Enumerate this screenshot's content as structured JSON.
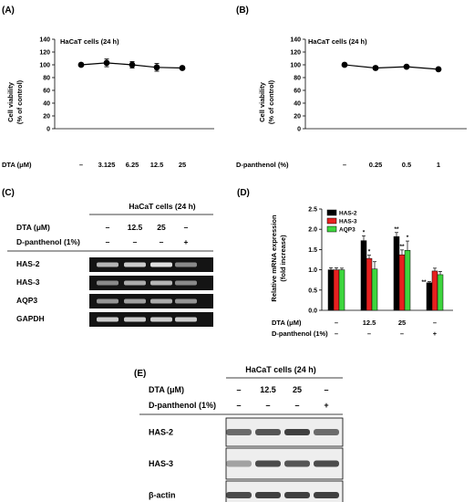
{
  "panels": {
    "A": {
      "label": "(A)",
      "chart_title": "HaCaT cells (24 h)",
      "ylabel_line1": "Cell viability",
      "ylabel_line2": "(% of control)",
      "row_label": "DTA (μM)",
      "categories": [
        "–",
        "3.125",
        "6.25",
        "12.5",
        "25"
      ]
    },
    "B": {
      "label": "(B)",
      "chart_title": "HaCaT cells (24 h)",
      "ylabel_line1": "Cell viability",
      "ylabel_line2": "(% of control)",
      "row_label": "D-panthenol (%)",
      "categories": [
        "–",
        "0.25",
        "0.5",
        "1"
      ]
    },
    "C": {
      "label": "(C)",
      "header": "HaCaT cells (24 h)",
      "row1_label": "DTA (μM)",
      "row1_values": [
        "–",
        "12.5",
        "25",
        "–"
      ],
      "row2_label": "D-panthenol (1%)",
      "row2_values": [
        "–",
        "–",
        "–",
        "+"
      ],
      "bands": [
        "HAS-2",
        "HAS-3",
        "AQP3",
        "GAPDH"
      ]
    },
    "D": {
      "label": "(D)",
      "ylabel_line1": "Relative mRNA expression",
      "ylabel_line2": "(fold increase)",
      "row1_label": "DTA (μM)",
      "row1_values": [
        "–",
        "12.5",
        "25",
        "–"
      ],
      "row2_label": "D-panthenol (1%)",
      "row2_values": [
        "–",
        "–",
        "–",
        "+"
      ],
      "legend": [
        "HAS-2",
        "HAS-3",
        "AQP3"
      ]
    },
    "E": {
      "label": "(E)",
      "header": "HaCaT cells (24 h)",
      "row1_label": "DTA (μM)",
      "row1_values": [
        "–",
        "12.5",
        "25",
        "–"
      ],
      "row2_label": "D-panthenol (1%)",
      "row2_values": [
        "–",
        "–",
        "–",
        "+"
      ],
      "bands": [
        "HAS-2",
        "HAS-3",
        "β-actin"
      ]
    }
  },
  "chart_data": [
    {
      "type": "line",
      "title": "HaCaT cells (24 h)",
      "xlabel": "DTA (μM)",
      "ylabel": "Cell viability (% of control)",
      "categories": [
        "–",
        "3.125",
        "6.25",
        "12.5",
        "25"
      ],
      "values": [
        100,
        103,
        100,
        96,
        95
      ],
      "errors": [
        2,
        6,
        5,
        6,
        2
      ],
      "ylim": [
        0,
        140
      ],
      "yticks": [
        0,
        20,
        40,
        60,
        80,
        100,
        120,
        140
      ]
    },
    {
      "type": "line",
      "title": "HaCaT cells (24 h)",
      "xlabel": "D-panthenol (%)",
      "ylabel": "Cell viability (% of control)",
      "categories": [
        "–",
        "0.25",
        "0.5",
        "1"
      ],
      "values": [
        100,
        95,
        97,
        93
      ],
      "errors": [
        1,
        3,
        2,
        1
      ],
      "ylim": [
        0,
        140
      ],
      "yticks": [
        0,
        20,
        40,
        60,
        80,
        100,
        120,
        140
      ]
    },
    {
      "type": "bar",
      "ylabel": "Relative mRNA expression (fold increase)",
      "ylim": [
        0,
        2.5
      ],
      "yticks": [
        0.0,
        0.5,
        1.0,
        1.5,
        2.0,
        2.5
      ],
      "series": [
        {
          "name": "HAS-2",
          "color": "#000000",
          "values": [
            1.0,
            1.72,
            1.82,
            0.68
          ],
          "errors": [
            0.05,
            0.12,
            0.1,
            0.03
          ],
          "marks": [
            "",
            "*",
            "**",
            "**"
          ]
        },
        {
          "name": "HAS-3",
          "color": "#e8201f",
          "values": [
            1.0,
            1.28,
            1.37,
            0.97
          ],
          "errors": [
            0.05,
            0.08,
            0.12,
            0.07
          ],
          "marks": [
            "",
            "*",
            "**",
            ""
          ]
        },
        {
          "name": "AQP3",
          "color": "#3ed63e",
          "values": [
            1.0,
            1.02,
            1.48,
            0.88
          ],
          "errors": [
            0.04,
            0.18,
            0.23,
            0.08
          ],
          "marks": [
            "",
            "",
            "*",
            ""
          ]
        }
      ]
    }
  ]
}
